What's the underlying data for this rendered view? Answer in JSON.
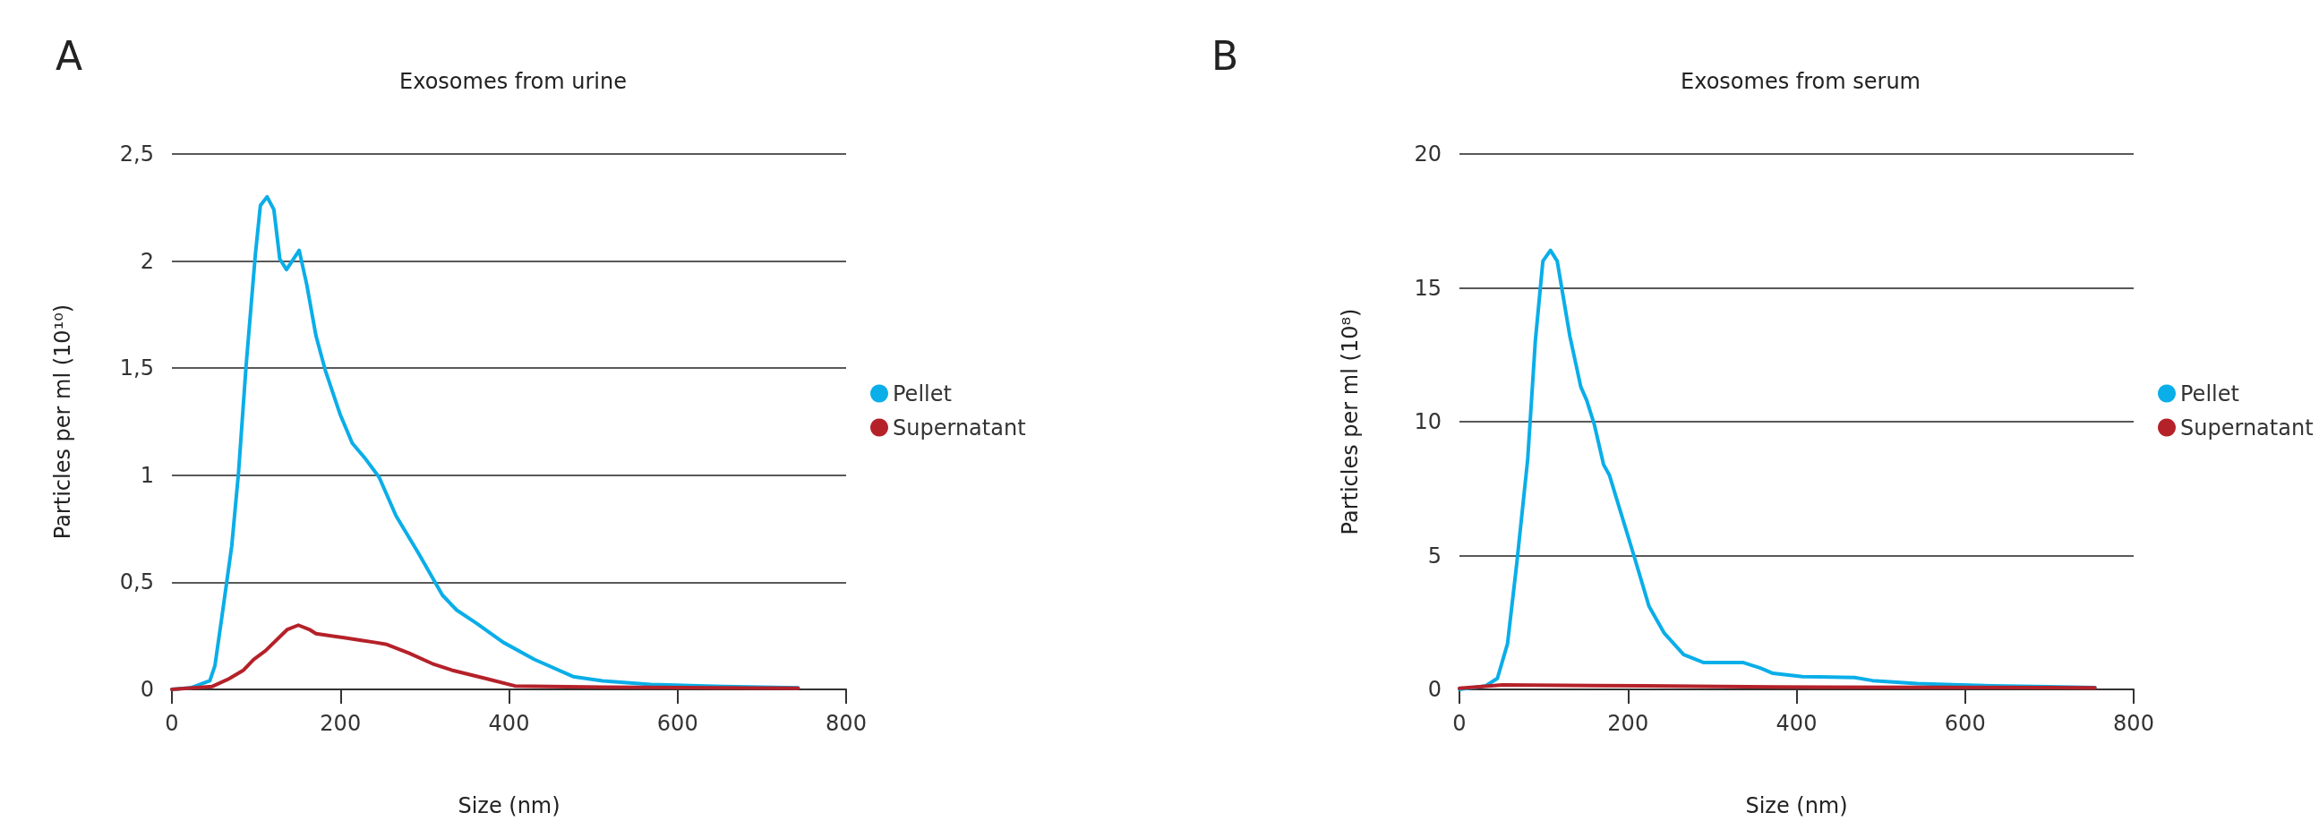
{
  "chart_data": [
    {
      "type": "line",
      "title": "Exosomes from urine",
      "xlabel": "Size (nm)",
      "ylabel": "Particles per ml (10¹⁰)",
      "annotations": [
        "A"
      ],
      "xlim": [
        0,
        800
      ],
      "xticks": [
        0,
        200,
        400,
        600,
        800
      ],
      "ylim": [
        0,
        2.5
      ],
      "yticks": [
        0,
        {
          "value": 0.5,
          "label": "0,5"
        },
        1,
        {
          "value": 1.5,
          "label": "1,5"
        },
        2,
        {
          "value": 2.5,
          "label": "2,5"
        }
      ],
      "grid": "y",
      "legend": "right",
      "marker": "none",
      "line_style": "solid",
      "series": [
        {
          "name": "Pellet",
          "color": "#0aaee8",
          "x": [
            0,
            22,
            45,
            51,
            59,
            71,
            79,
            88,
            99,
            105,
            113,
            121,
            128,
            136,
            151,
            160,
            171,
            182,
            200,
            214,
            229,
            246,
            266,
            292,
            321,
            338,
            361,
            393,
            430,
            476,
            511,
            568,
            654,
            743
          ],
          "values": [
            0,
            0.007,
            0.04,
            0.11,
            0.33,
            0.67,
            1.01,
            1.51,
            2.03,
            2.26,
            2.3,
            2.24,
            2.01,
            1.96,
            2.05,
            1.89,
            1.65,
            1.49,
            1.28,
            1.15,
            1.08,
            0.99,
            0.81,
            0.64,
            0.44,
            0.37,
            0.31,
            0.22,
            0.14,
            0.06,
            0.04,
            0.023,
            0.014,
            0.007
          ]
        },
        {
          "name": "Supernatant",
          "color": "#b52129",
          "x": [
            0,
            48,
            68,
            85,
            97,
            111,
            137,
            150,
            163,
            171,
            189,
            206,
            223,
            240,
            255,
            281,
            309,
            332,
            373,
            407,
            511,
            743
          ],
          "values": [
            0,
            0.014,
            0.05,
            0.09,
            0.14,
            0.18,
            0.28,
            0.3,
            0.28,
            0.26,
            0.25,
            0.24,
            0.23,
            0.22,
            0.21,
            0.17,
            0.12,
            0.09,
            0.05,
            0.016,
            0.01,
            0.005
          ]
        }
      ]
    },
    {
      "type": "line",
      "title": "Exosomes from serum",
      "xlabel": "Size (nm)",
      "ylabel": "Particles per ml (10⁸)",
      "annotations": [
        "B"
      ],
      "xlim": [
        0,
        800
      ],
      "xticks": [
        0,
        200,
        400,
        600,
        800
      ],
      "ylim": [
        0,
        20
      ],
      "yticks": [
        0,
        5,
        10,
        15,
        20
      ],
      "grid": "y",
      "legend": "right",
      "marker": "none",
      "line_style": "solid",
      "series": [
        {
          "name": "Pellet",
          "color": "#0aaee8",
          "x": [
            0,
            31,
            45,
            57,
            68,
            81,
            90,
            99,
            108,
            116,
            131,
            144,
            151,
            160,
            171,
            178,
            207,
            225,
            243,
            266,
            290,
            337,
            357,
            372,
            407,
            469,
            490,
            543,
            631,
            754
          ],
          "values": [
            0,
            0.13,
            0.41,
            1.7,
            4.7,
            8.6,
            13,
            16,
            16.4,
            16,
            13.2,
            11.3,
            10.8,
            9.9,
            8.4,
            8,
            5,
            3.1,
            2.1,
            1.3,
            1,
            1,
            0.8,
            0.6,
            0.48,
            0.44,
            0.33,
            0.22,
            0.13,
            0.07
          ]
        },
        {
          "name": "Supernatant",
          "color": "#b52129",
          "x": [
            0,
            51,
            219,
            372,
            754
          ],
          "values": [
            0.04,
            0.17,
            0.13,
            0.09,
            0.06
          ]
        }
      ]
    }
  ]
}
